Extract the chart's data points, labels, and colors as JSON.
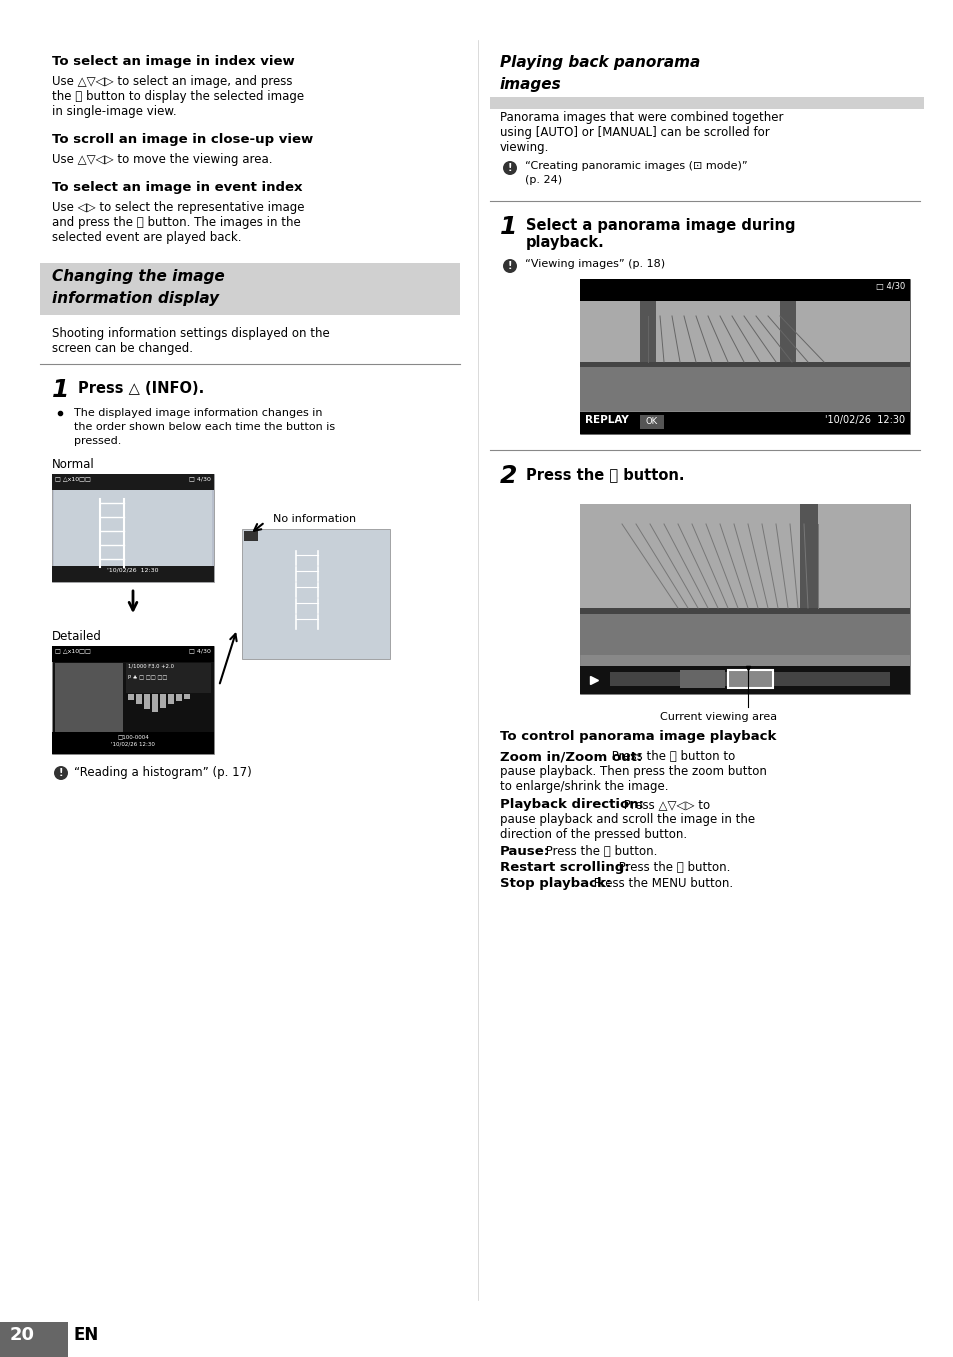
{
  "bg_color": "#ffffff",
  "section1_heading": "To select an image in index view",
  "section1_body1": "Use △▽◁▷ to select an image, and press",
  "section1_body2": "the ⓞ button to display the selected image",
  "section1_body3": "in single-image view.",
  "section2_heading": "To scroll an image in close-up view",
  "section2_body": "Use △▽◁▷ to move the viewing area.",
  "section3_heading": "To select an image in event index",
  "section3_body1": "Use ◁▷ to select the representative image",
  "section3_body2": "and press the ⓞ button. The images in the",
  "section3_body3": "selected event are played back.",
  "left_title1": "Changing the image",
  "left_title2": "information display",
  "shooting_text1": "Shooting information settings displayed on the",
  "shooting_text2": "screen can be changed.",
  "step1_num": "1",
  "step1_bold": "Press △ (INFO).",
  "step1_bullet1": "The displayed image information changes in",
  "step1_bullet2": "the order shown below each time the button is",
  "step1_bullet3": "pressed.",
  "normal_label": "Normal",
  "no_info_label": "No information",
  "detailed_label": "Detailed",
  "histogram_note": "“Reading a histogram” (p. 17)",
  "right_title1": "Playing back panorama",
  "right_title2": "images",
  "pano_body1": "Panorama images that were combined together",
  "pano_body2": "using [AUTO] or [MANUAL] can be scrolled for",
  "pano_body3": "viewing.",
  "pano_note1": "“Creating panoramic images (⊡ mode)”",
  "pano_note2": "(p. 24)",
  "r_step1_num": "1",
  "r_step1_bold1": "Select a panorama image during",
  "r_step1_bold2": "playback.",
  "r_step1_note": "“Viewing images” (p. 18)",
  "r_step2_num": "2",
  "r_step2_bold": "Press the ⓞ button.",
  "current_viewing_area": "Current viewing area",
  "control_heading": "To control panorama image playback",
  "zi_bold": "Zoom in/Zoom out:",
  "zi_text1": " Press the ⓞ button to",
  "zi_text2": "pause playback. Then press the zoom button",
  "zi_text3": "to enlarge/shrink the image.",
  "pb_bold": "Playback direction:",
  "pb_text1": " Press △▽◁▷ to",
  "pb_text2": "pause playback and scroll the image in the",
  "pb_text3": "direction of the pressed button.",
  "pause_bold": "Pause:",
  "pause_text": " Press the ⓞ button.",
  "restart_bold": "Restart scrolling:",
  "restart_text": " Press the ⓞ button.",
  "stop_bold": "Stop playback:",
  "stop_text": " Press the MENU button.",
  "page_number": "20",
  "page_en": "EN"
}
